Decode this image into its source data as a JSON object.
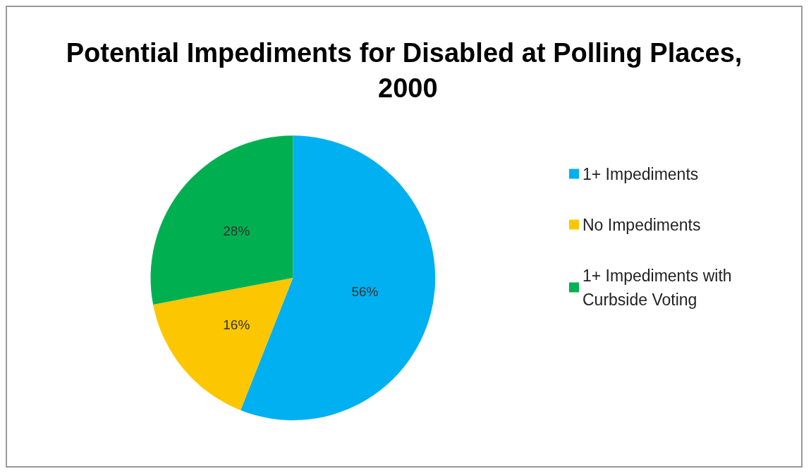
{
  "chart_data": {
    "type": "pie",
    "title": "Potential Impediments for Disabled at Polling Places, 2000",
    "categories": [
      "1+ Impediments",
      "No Impediments",
      "1+ Impediments with Curbside Voting"
    ],
    "values": [
      56,
      16,
      28
    ],
    "colors": [
      "#00b0f0",
      "#fcc600",
      "#00b050"
    ],
    "value_labels": [
      "56%",
      "16%",
      "28%"
    ],
    "legend": "right"
  }
}
